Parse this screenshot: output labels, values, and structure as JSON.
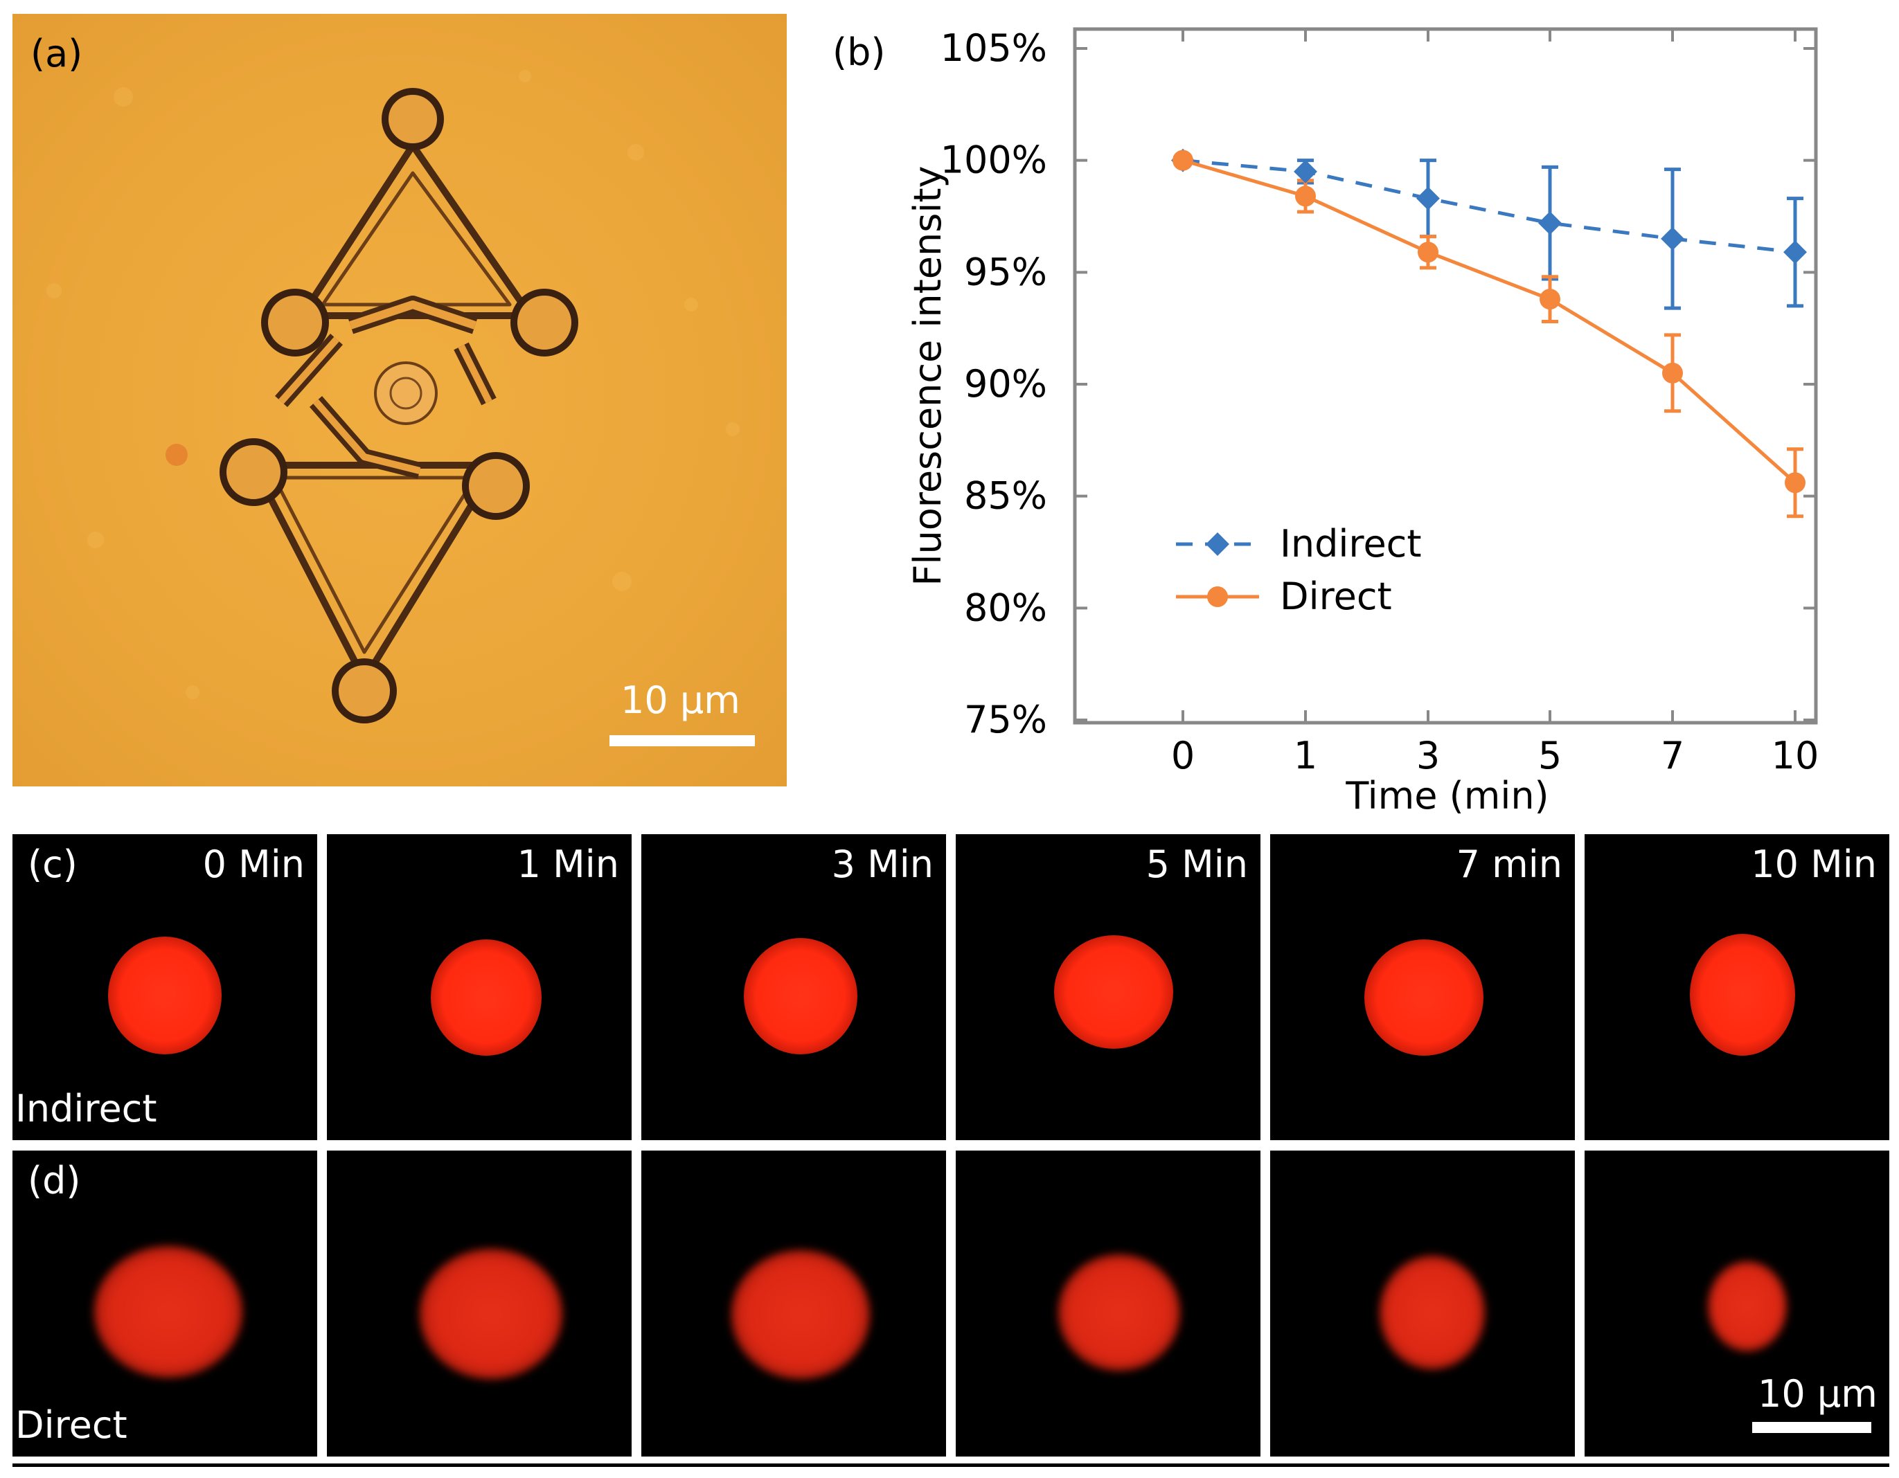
{
  "panel_a": {
    "label": "(a)",
    "scale_bar": "10 μm"
  },
  "chart_data": {
    "type": "line",
    "panel_label": "(b)",
    "title": "",
    "xlabel": "Time (min)",
    "ylabel": "Fluorescence intensity",
    "categories": [
      "0",
      "1",
      "3",
      "5",
      "7",
      "10"
    ],
    "y_ticks": [
      "75%",
      "80%",
      "85%",
      "90%",
      "95%",
      "100%",
      "105%"
    ],
    "ylim": [
      75,
      105
    ],
    "legend_position": "bottom-left",
    "series": [
      {
        "name": "Indirect",
        "style": "dashed",
        "marker": "diamond",
        "color": "#3a78c0",
        "values": [
          100,
          99.5,
          98.3,
          97.2,
          96.5,
          95.9
        ],
        "errors": [
          0,
          0.5,
          1.7,
          2.5,
          3.1,
          2.4
        ]
      },
      {
        "name": "Direct",
        "style": "solid",
        "marker": "circle",
        "color": "#f5873c",
        "values": [
          100,
          98.4,
          95.9,
          93.8,
          90.5,
          85.6
        ],
        "errors": [
          0,
          0.7,
          0.7,
          1.0,
          1.7,
          1.5
        ]
      }
    ]
  },
  "panel_c": {
    "label": "(c)",
    "row_label": "Indirect",
    "time_labels": [
      "0 Min",
      "1 Min",
      "3 Min",
      "5 Min",
      "7 min",
      "10 Min"
    ]
  },
  "panel_d": {
    "label": "(d)",
    "row_label": "Direct",
    "scale_bar": "10 μm"
  }
}
